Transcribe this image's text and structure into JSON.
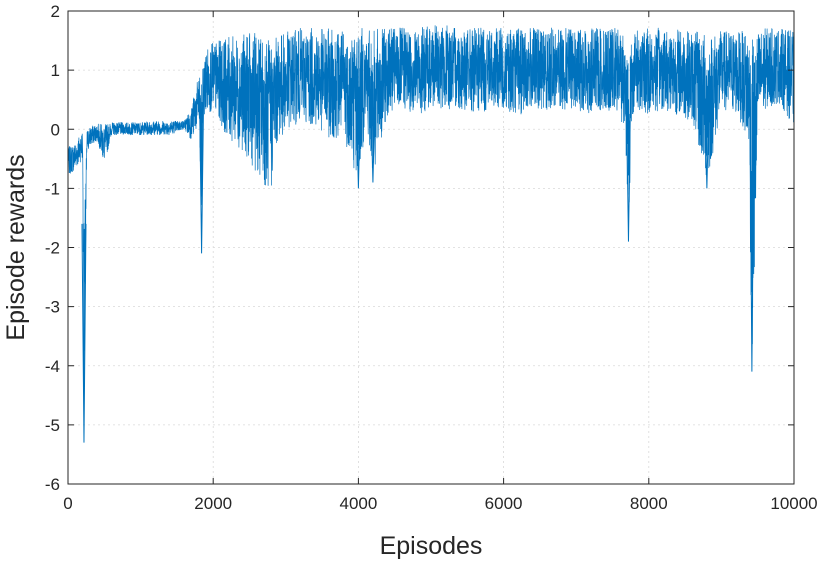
{
  "chart_data": {
    "type": "line",
    "title": "",
    "xlabel": "Episodes",
    "ylabel": "Episode rewards",
    "xlim": [
      0,
      10000
    ],
    "ylim": [
      -6,
      2
    ],
    "x_ticks": [
      0,
      2000,
      4000,
      6000,
      8000,
      10000
    ],
    "x_tick_labels": [
      "0",
      "2000",
      "4000",
      "6000",
      "8000",
      "10000"
    ],
    "y_ticks": [
      2,
      1,
      0,
      -1,
      -2,
      -3,
      -4,
      -5,
      -6
    ],
    "y_tick_labels": [
      "2",
      "1",
      "0",
      "-1",
      "-2",
      "-3",
      "-4",
      "-5",
      "-6"
    ],
    "grid": true,
    "line_color": "#0072BD",
    "series": [
      {
        "x": [
          0,
          100,
          150,
          200,
          220,
          260,
          300,
          400,
          500,
          600,
          800,
          1000,
          1200,
          1400,
          1600,
          1700,
          1750,
          1800,
          1840,
          1860,
          1900,
          2000,
          2200,
          2400,
          2600,
          2800,
          2820,
          2900,
          3000,
          3200,
          3400,
          3600,
          3800,
          4000,
          4100,
          4200,
          4400,
          4600,
          4800,
          5000,
          5200,
          5400,
          5600,
          5800,
          6000,
          6200,
          6400,
          6600,
          6800,
          7000,
          7200,
          7400,
          7600,
          7680,
          7720,
          7760,
          7800,
          8000,
          8200,
          8400,
          8600,
          8800,
          9000,
          9200,
          9300,
          9380,
          9420,
          9460,
          9500,
          9600,
          9800,
          10000
        ],
        "y_upper": [
          -0.3,
          -0.2,
          -0.1,
          0.0,
          -1.6,
          0.0,
          0.05,
          0.1,
          0.1,
          0.12,
          0.12,
          0.12,
          0.15,
          0.15,
          0.15,
          0.4,
          0.7,
          0.9,
          0.95,
          1.1,
          1.4,
          1.5,
          1.6,
          1.65,
          1.7,
          1.6,
          1.55,
          1.65,
          1.7,
          1.75,
          1.75,
          1.75,
          1.75,
          1.8,
          1.75,
          1.75,
          1.75,
          1.75,
          1.75,
          1.8,
          1.8,
          1.75,
          1.75,
          1.75,
          1.75,
          1.75,
          1.75,
          1.75,
          1.75,
          1.75,
          1.75,
          1.75,
          1.75,
          1.7,
          1.3,
          1.6,
          1.7,
          1.75,
          1.75,
          1.75,
          1.7,
          1.7,
          1.7,
          1.7,
          1.7,
          1.7,
          1.65,
          1.7,
          1.7,
          1.75,
          1.75,
          1.7
        ],
        "y_lower": [
          -0.8,
          -0.7,
          -0.6,
          -0.5,
          -5.3,
          -0.4,
          -0.3,
          -0.2,
          -0.6,
          -0.1,
          -0.1,
          -0.1,
          -0.1,
          -0.1,
          0.0,
          -0.2,
          -0.1,
          0.1,
          -2.1,
          0.2,
          0.2,
          0.3,
          -0.2,
          -0.4,
          -0.8,
          -1.2,
          -0.6,
          -0.2,
          -0.1,
          0.1,
          0.0,
          -0.2,
          -0.2,
          -1.0,
          0.0,
          -0.9,
          0.2,
          0.3,
          0.2,
          0.3,
          0.3,
          0.3,
          0.2,
          0.3,
          0.3,
          0.2,
          0.3,
          0.3,
          0.3,
          0.3,
          0.2,
          0.3,
          0.2,
          -0.2,
          -1.9,
          0.0,
          0.3,
          0.2,
          0.3,
          0.2,
          0.1,
          -1.0,
          0.3,
          0.2,
          0.0,
          -0.4,
          -4.1,
          -2.5,
          0.0,
          0.3,
          0.4,
          0.0
        ]
      }
    ]
  }
}
